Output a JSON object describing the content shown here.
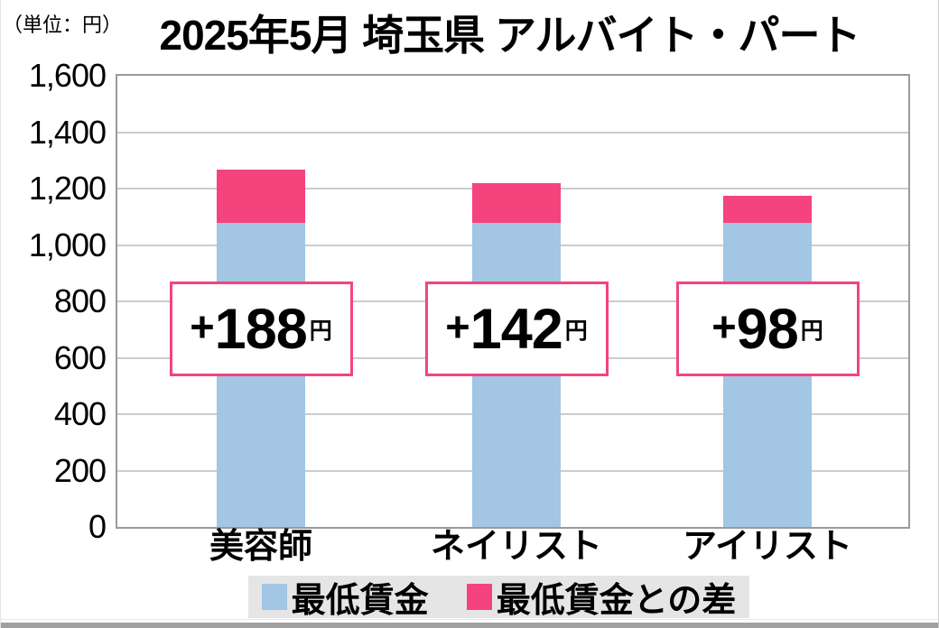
{
  "unit_label": "（単位：円）",
  "title": "2025年5月 埼玉県 アルバイト・パート",
  "chart_data": {
    "type": "bar",
    "stacked": true,
    "categories": [
      "美容師",
      "ネイリスト",
      "アイリスト"
    ],
    "series": [
      {
        "name": "最低賃金",
        "color": "#a2c6e4",
        "values": [
          1078,
          1078,
          1078
        ]
      },
      {
        "name": "最低賃金との差",
        "color": "#f5437d",
        "values": [
          188,
          142,
          98
        ]
      }
    ],
    "callout_prefix": "+",
    "callout_suffix": "円",
    "callout_values": [
      "188",
      "142",
      "98"
    ],
    "ylim": [
      0,
      1600
    ],
    "ytick_interval": 200,
    "yticks": [
      "0",
      "200",
      "400",
      "600",
      "800",
      "1,000",
      "1,200",
      "1,400",
      "1,600"
    ],
    "grid": true,
    "legend_position": "bottom",
    "accent_pink": "#f5437d",
    "accent_blue": "#a2c6e4"
  },
  "legend": {
    "items": [
      {
        "label": "最低賃金",
        "color": "#a2c6e4"
      },
      {
        "label": "最低賃金との差",
        "color": "#f5437d"
      }
    ]
  }
}
